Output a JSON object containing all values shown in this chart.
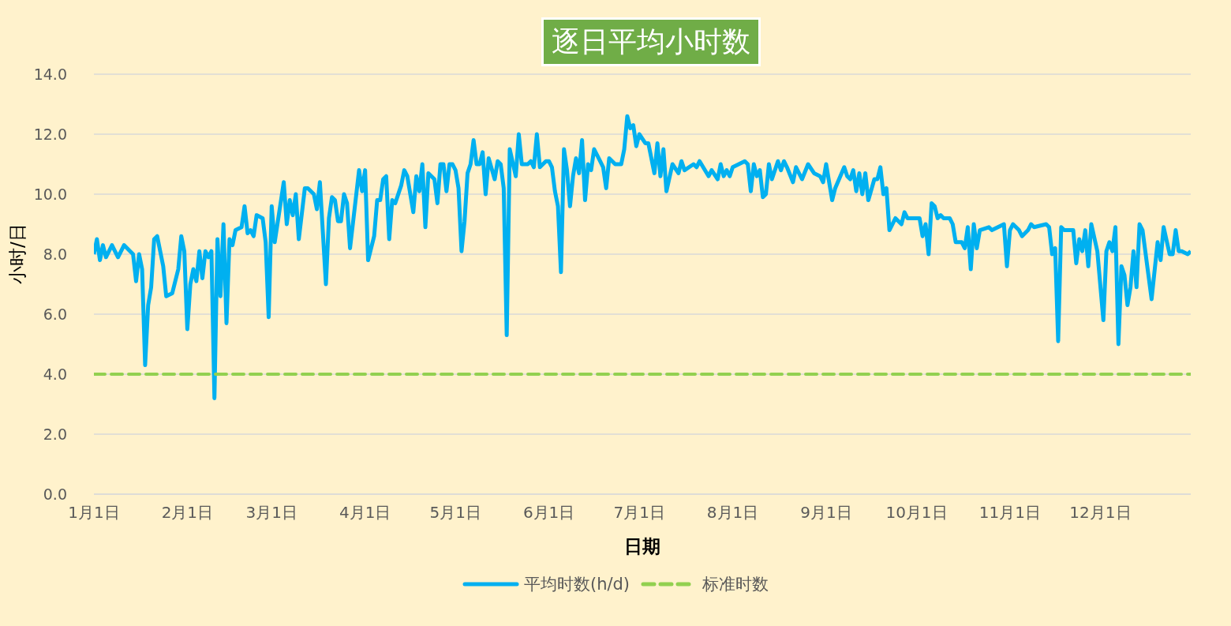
{
  "chart_data": {
    "type": "line",
    "title": "逐日平均小时数",
    "xlabel": "日期",
    "ylabel": "小时/日",
    "grid": "y",
    "legend": "bottom",
    "xlim": [
      "--01-01",
      "--12-31"
    ],
    "xticks": [
      {
        "value": "--01-01",
        "label": "1月1日"
      },
      {
        "value": "--02-01",
        "label": "2月1日"
      },
      {
        "value": "--03-01",
        "label": "3月1日"
      },
      {
        "value": "--04-01",
        "label": "4月1日"
      },
      {
        "value": "--05-01",
        "label": "5月1日"
      },
      {
        "value": "--06-01",
        "label": "6月1日"
      },
      {
        "value": "--07-01",
        "label": "7月1日"
      },
      {
        "value": "--08-01",
        "label": "8月1日"
      },
      {
        "value": "--09-01",
        "label": "9月1日"
      },
      {
        "value": "--10-01",
        "label": "10月1日"
      },
      {
        "value": "--11-01",
        "label": "11月1日"
      },
      {
        "value": "--12-01",
        "label": "12月1日"
      }
    ],
    "ylim": [
      0,
      14
    ],
    "yticks": [
      {
        "value": 0,
        "label": "0.0"
      },
      {
        "value": 2,
        "label": "2.0"
      },
      {
        "value": 4,
        "label": "4.0"
      },
      {
        "value": 6,
        "label": "6.0"
      },
      {
        "value": 8,
        "label": "8.0"
      },
      {
        "value": 10,
        "label": "10.0"
      },
      {
        "value": 12,
        "label": "12.0"
      },
      {
        "value": 14,
        "label": "14.0"
      }
    ],
    "series": [
      {
        "name": "平均时数(h/d)",
        "color": "#00b0f0",
        "line_style": "solid",
        "x": [
          "--01-01",
          "--01-02",
          "--01-03",
          "--01-04",
          "--01-05",
          "--01-07",
          "--01-09",
          "--01-11",
          "--01-13",
          "--01-14",
          "--01-15",
          "--01-16",
          "--01-17",
          "--01-18",
          "--01-19",
          "--01-20",
          "--01-21",
          "--01-22",
          "--01-24",
          "--01-25",
          "--01-27",
          "--01-29",
          "--01-30",
          "--01-31",
          "--02-01",
          "--02-02",
          "--02-03",
          "--02-04",
          "--02-05",
          "--02-06",
          "--02-07",
          "--02-08",
          "--02-09",
          "--02-10",
          "--02-11",
          "--02-12",
          "--02-13",
          "--02-14",
          "--02-15",
          "--02-16",
          "--02-17",
          "--02-19",
          "--02-20",
          "--02-21",
          "--02-22",
          "--02-23",
          "--02-24",
          "--02-26",
          "--02-27",
          "--02-28",
          "--03-01",
          "--03-02",
          "--03-05",
          "--03-06",
          "--03-07",
          "--03-08",
          "--03-09",
          "--03-10",
          "--03-12",
          "--03-13",
          "--03-15",
          "--03-16",
          "--03-17",
          "--03-19",
          "--03-20",
          "--03-21",
          "--03-22",
          "--03-23",
          "--03-24",
          "--03-25",
          "--03-26",
          "--03-27",
          "--03-30",
          "--03-31",
          "--04-01",
          "--04-02",
          "--04-04",
          "--04-05",
          "--04-06",
          "--04-07",
          "--04-08",
          "--04-09",
          "--04-10",
          "--04-11",
          "--04-13",
          "--04-14",
          "--04-15",
          "--04-17",
          "--04-18",
          "--04-19",
          "--04-20",
          "--04-21",
          "--04-22",
          "--04-23",
          "--04-24",
          "--04-25",
          "--04-26",
          "--04-27",
          "--04-28",
          "--04-29",
          "--04-30",
          "--05-01",
          "--05-02",
          "--05-03",
          "--05-04",
          "--05-05",
          "--05-06",
          "--05-07",
          "--05-08",
          "--05-09",
          "--05-10",
          "--05-11",
          "--05-12",
          "--05-14",
          "--05-15",
          "--05-16",
          "--05-17",
          "--05-18",
          "--05-19",
          "--05-21",
          "--05-22",
          "--05-23",
          "--05-25",
          "--05-26",
          "--05-27",
          "--05-28",
          "--05-29",
          "--05-31",
          "--06-01",
          "--06-02",
          "--06-03",
          "--06-04",
          "--06-05",
          "--06-06",
          "--06-07",
          "--06-08",
          "--06-09",
          "--06-10",
          "--06-11",
          "--06-12",
          "--06-13",
          "--06-14",
          "--06-15",
          "--06-16",
          "--06-18",
          "--06-19",
          "--06-20",
          "--06-21",
          "--06-23",
          "--06-25",
          "--06-26",
          "--06-27",
          "--06-28",
          "--06-29",
          "--06-30",
          "--07-01",
          "--07-03",
          "--07-04",
          "--07-06",
          "--07-07",
          "--07-08",
          "--07-09",
          "--07-10",
          "--07-12",
          "--07-14",
          "--07-15",
          "--07-16",
          "--07-19",
          "--07-20",
          "--07-21",
          "--07-24",
          "--07-25",
          "--07-27",
          "--07-28",
          "--07-29",
          "--07-30",
          "--07-31",
          "--08-01",
          "--08-03",
          "--08-05",
          "--08-06",
          "--08-07",
          "--08-08",
          "--08-09",
          "--08-10",
          "--08-11",
          "--08-12",
          "--08-13",
          "--08-14",
          "--08-16",
          "--08-17",
          "--08-18",
          "--08-19",
          "--08-21",
          "--08-22",
          "--08-24",
          "--08-26",
          "--08-28",
          "--08-30",
          "--08-31",
          "--09-01",
          "--09-03",
          "--09-04",
          "--09-07",
          "--09-08",
          "--09-09",
          "--09-10",
          "--09-11",
          "--09-12",
          "--09-13",
          "--09-14",
          "--09-15",
          "--09-17",
          "--09-18",
          "--09-19",
          "--09-20",
          "--09-21",
          "--09-22",
          "--09-24",
          "--09-26",
          "--09-27",
          "--09-28",
          "--09-30",
          "--10-02",
          "--10-03",
          "--10-04",
          "--10-05",
          "--10-06",
          "--10-07",
          "--10-08",
          "--10-09",
          "--10-10",
          "--10-12",
          "--10-13",
          "--10-14",
          "--10-16",
          "--10-17",
          "--10-18",
          "--10-19",
          "--10-20",
          "--10-21",
          "--10-22",
          "--10-25",
          "--10-26",
          "--10-30",
          "--10-31",
          "--11-01",
          "--11-02",
          "--11-04",
          "--11-05",
          "--11-07",
          "--11-08",
          "--11-09",
          "--11-13",
          "--11-14",
          "--11-15",
          "--11-16",
          "--11-17",
          "--11-18",
          "--11-19",
          "--11-22",
          "--11-23",
          "--11-24",
          "--11-25",
          "--11-26",
          "--11-27",
          "--11-28",
          "--11-30",
          "--12-02",
          "--12-03",
          "--12-04",
          "--12-05",
          "--12-06",
          "--12-07",
          "--12-08",
          "--12-09",
          "--12-10",
          "--12-11",
          "--12-12",
          "--12-13",
          "--12-14",
          "--12-15",
          "--12-18",
          "--12-20",
          "--12-21",
          "--12-22",
          "--12-24",
          "--12-25",
          "--12-26",
          "--12-27",
          "--12-28",
          "--12-30",
          "--12-31"
        ],
        "values": [
          8.0,
          8.5,
          7.8,
          8.3,
          7.9,
          8.3,
          7.9,
          8.3,
          8.1,
          8.0,
          7.1,
          8.0,
          7.5,
          4.3,
          6.3,
          6.9,
          8.5,
          8.6,
          7.6,
          6.6,
          6.7,
          7.5,
          8.6,
          8.1,
          5.5,
          7.0,
          7.5,
          7.1,
          8.1,
          7.2,
          8.1,
          7.9,
          8.1,
          3.2,
          8.5,
          6.6,
          9.0,
          5.7,
          8.5,
          8.3,
          8.8,
          8.9,
          9.6,
          8.7,
          8.8,
          8.6,
          9.3,
          9.2,
          8.4,
          5.9,
          9.6,
          8.4,
          10.4,
          9.0,
          9.8,
          9.3,
          10.0,
          8.5,
          10.2,
          10.2,
          10.0,
          9.5,
          10.4,
          7.0,
          9.2,
          9.9,
          9.8,
          9.1,
          9.1,
          10.0,
          9.7,
          8.2,
          10.8,
          10.1,
          10.8,
          7.8,
          8.6,
          9.8,
          9.8,
          10.5,
          10.6,
          8.5,
          9.8,
          9.7,
          10.3,
          10.8,
          10.6,
          9.4,
          10.6,
          10.1,
          11.0,
          8.9,
          10.7,
          10.6,
          10.5,
          9.7,
          11.0,
          11.0,
          10.1,
          11.0,
          11.0,
          10.8,
          10.2,
          8.1,
          9.1,
          10.7,
          11.0,
          11.8,
          11.0,
          11.0,
          11.4,
          10.0,
          11.2,
          10.5,
          11.1,
          11.0,
          10.2,
          5.3,
          11.5,
          10.6,
          12.0,
          11.0,
          11.0,
          11.1,
          10.9,
          12.0,
          10.9,
          11.1,
          11.1,
          10.9,
          10.1,
          9.6,
          7.4,
          11.5,
          10.8,
          9.6,
          10.6,
          11.2,
          10.7,
          11.8,
          9.8,
          11.0,
          10.8,
          11.5,
          11.1,
          10.9,
          10.2,
          11.2,
          11.0,
          11.0,
          11.5,
          12.6,
          12.2,
          12.3,
          11.6,
          12.0,
          11.7,
          11.7,
          10.7,
          11.7,
          10.6,
          11.5,
          10.1,
          11.0,
          10.7,
          11.1,
          10.8,
          11.0,
          10.9,
          11.1,
          10.6,
          10.8,
          10.5,
          11.0,
          10.6,
          10.8,
          10.6,
          10.9,
          11.0,
          11.1,
          11.0,
          10.1,
          11.0,
          10.6,
          10.8,
          9.9,
          10.0,
          11.0,
          10.5,
          11.1,
          10.8,
          11.1,
          10.9,
          10.4,
          10.9,
          10.5,
          11.0,
          10.7,
          10.6,
          10.4,
          11.0,
          9.8,
          10.2,
          10.9,
          10.6,
          10.5,
          10.8,
          10.1,
          10.7,
          10.0,
          10.7,
          9.8,
          10.5,
          10.5,
          10.9,
          10.0,
          10.2,
          8.8,
          9.2,
          9.0,
          9.4,
          9.2,
          9.2,
          9.2,
          8.6,
          9.0,
          8.0,
          9.7,
          9.6,
          9.2,
          9.3,
          9.2,
          9.2,
          9.0,
          8.4,
          8.4,
          8.2,
          8.9,
          7.5,
          9.0,
          8.2,
          8.8,
          8.9,
          8.8,
          9.0,
          7.6,
          8.8,
          9.0,
          8.8,
          8.6,
          8.8,
          9.0,
          8.9,
          9.0,
          8.9,
          8.0,
          8.2,
          5.1,
          8.9,
          8.8,
          8.8,
          7.7,
          8.5,
          8.1,
          8.8,
          7.6,
          9.0,
          8.1,
          5.8,
          8.1,
          8.4,
          8.1,
          8.9,
          5.0,
          7.6,
          7.3,
          6.3,
          6.9,
          8.1,
          6.9,
          9.0,
          8.8,
          6.5,
          8.4,
          7.8,
          8.9,
          8.0,
          8.0,
          8.8,
          8.1,
          8.1,
          8.0,
          8.1
        ]
      },
      {
        "name": "标准时数",
        "color": "#92d050",
        "line_style": "dashed",
        "x": [
          "--01-01",
          "--12-31"
        ],
        "values": [
          4,
          4
        ]
      }
    ]
  }
}
